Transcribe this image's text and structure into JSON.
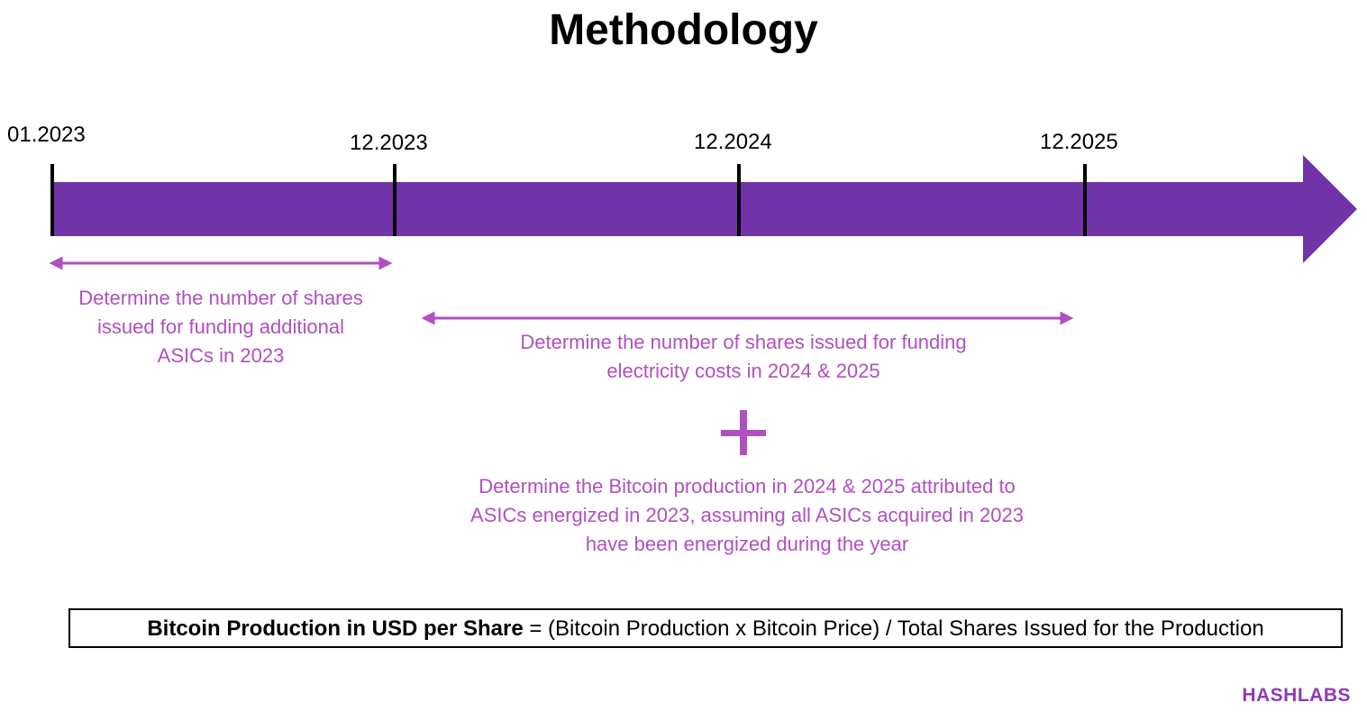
{
  "title": "Methodology",
  "timeline": {
    "dates": [
      "01.2023",
      "12.2023",
      "12.2024",
      "12.2025"
    ]
  },
  "descriptions": {
    "asics_2023": [
      "Determine the number of shares",
      "issued for funding additional",
      "ASICs in 2023"
    ],
    "electricity": [
      "Determine the number of shares issued for funding",
      "electricity costs in 2024 & 2025"
    ],
    "production": [
      "Determine the Bitcoin production in 2024 & 2025 attributed to",
      "ASICs energized in 2023, assuming all ASICs acquired in 2023",
      "have been energized during the year"
    ]
  },
  "formula": {
    "bold": "Bitcoin Production in USD per Share",
    "rest": " = (Bitcoin Production x Bitcoin Price) / Total Shares Issued for the Production"
  },
  "logo": "HASHLABS",
  "colors": {
    "bar": "#7033A8",
    "accent_text": "#B050C0",
    "logo": "#8E3AB8"
  },
  "icons": {
    "plus": "plus-icon"
  }
}
